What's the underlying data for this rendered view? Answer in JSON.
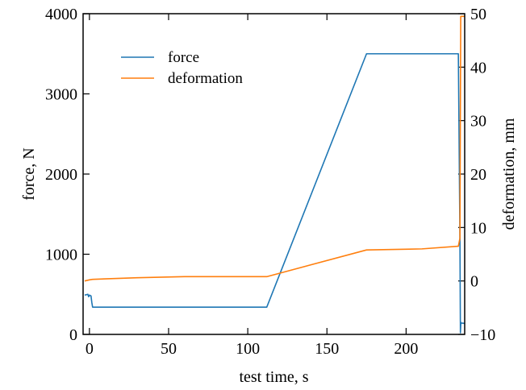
{
  "chart_data": {
    "type": "line",
    "title": "",
    "xlabel": "test time, s",
    "ylabel_left": "force, N",
    "ylabel_right": "deformation, mm",
    "xlim": [
      -4,
      237
    ],
    "ylim_left": [
      0,
      4000
    ],
    "ylim_right": [
      -10,
      50
    ],
    "xticks": [
      0,
      50,
      100,
      150,
      200
    ],
    "xtick_labels": [
      "0",
      "50",
      "100",
      "150",
      "200"
    ],
    "yticks_left": [
      0,
      1000,
      2000,
      3000,
      4000
    ],
    "ytick_labels_left": [
      "0",
      "1000",
      "2000",
      "3000",
      "4000"
    ],
    "yticks_right": [
      -10,
      0,
      10,
      20,
      30,
      40,
      50
    ],
    "ytick_labels_right": [
      "−10",
      "0",
      "10",
      "20",
      "30",
      "40",
      "50"
    ],
    "grid": false,
    "legend_position": "upper-left",
    "series": [
      {
        "name": "force",
        "axis": "left",
        "color": "#1f77b4",
        "x": [
          -3,
          -1,
          -0.5,
          0,
          1,
          1.5,
          2,
          112,
          175,
          233,
          234,
          234.3,
          234.6,
          235,
          236,
          237
        ],
        "y": [
          490,
          500,
          470,
          490,
          480,
          400,
          340,
          340,
          3500,
          3500,
          1200,
          20,
          150,
          140,
          140,
          135
        ]
      },
      {
        "name": "deformation",
        "axis": "right",
        "color": "#ff7f0e",
        "x": [
          -3,
          0,
          2,
          30,
          60,
          112,
          175,
          210,
          233,
          234,
          234.5,
          235,
          237
        ],
        "y": [
          0,
          0.2,
          0.3,
          0.6,
          0.8,
          0.8,
          5.8,
          6.0,
          6.5,
          8,
          49.5,
          49.5,
          49.5
        ]
      }
    ]
  }
}
